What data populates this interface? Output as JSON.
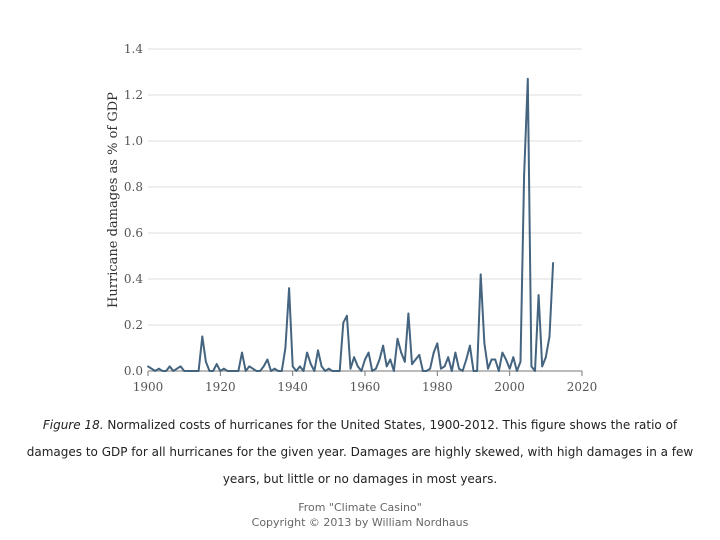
{
  "chart_data": {
    "type": "line",
    "ylabel": "Hurricane damages as % of GDP",
    "xlim": [
      1900,
      2020
    ],
    "ylim": [
      0,
      1.4
    ],
    "xticks": [
      1900,
      1920,
      1940,
      1960,
      1980,
      2000,
      2020
    ],
    "yticks": [
      0.0,
      0.2,
      0.4,
      0.6,
      0.8,
      1.0,
      1.2,
      1.4
    ],
    "ytick_labels": [
      "0.0",
      "0.2",
      "0.4",
      "0.6",
      "0.8",
      "1.0",
      "1.2",
      "1.4"
    ],
    "grid": "horizontal",
    "color": "#44647f",
    "x": [
      1900,
      1901,
      1902,
      1903,
      1904,
      1905,
      1906,
      1907,
      1908,
      1909,
      1910,
      1911,
      1912,
      1913,
      1914,
      1915,
      1916,
      1917,
      1918,
      1919,
      1920,
      1921,
      1922,
      1923,
      1924,
      1925,
      1926,
      1927,
      1928,
      1929,
      1930,
      1931,
      1932,
      1933,
      1934,
      1935,
      1936,
      1937,
      1938,
      1939,
      1940,
      1941,
      1942,
      1943,
      1944,
      1945,
      1946,
      1947,
      1948,
      1949,
      1950,
      1951,
      1952,
      1953,
      1954,
      1955,
      1956,
      1957,
      1958,
      1959,
      1960,
      1961,
      1962,
      1963,
      1964,
      1965,
      1966,
      1967,
      1968,
      1969,
      1970,
      1971,
      1972,
      1973,
      1974,
      1975,
      1976,
      1977,
      1978,
      1979,
      1980,
      1981,
      1982,
      1983,
      1984,
      1985,
      1986,
      1987,
      1988,
      1989,
      1990,
      1991,
      1992,
      1993,
      1994,
      1995,
      1996,
      1997,
      1998,
      1999,
      2000,
      2001,
      2002,
      2003,
      2004,
      2005,
      2006,
      2007,
      2008,
      2009,
      2010,
      2011,
      2012
    ],
    "values": [
      0.02,
      0.01,
      0.0,
      0.01,
      0.0,
      0.0,
      0.02,
      0.0,
      0.01,
      0.02,
      0.0,
      0.0,
      0.0,
      0.0,
      0.0,
      0.15,
      0.04,
      0.0,
      0.0,
      0.03,
      0.0,
      0.01,
      0.0,
      0.0,
      0.0,
      0.0,
      0.08,
      0.0,
      0.02,
      0.01,
      0.0,
      0.0,
      0.02,
      0.05,
      0.0,
      0.01,
      0.0,
      0.0,
      0.1,
      0.36,
      0.02,
      0.0,
      0.02,
      0.0,
      0.08,
      0.03,
      0.0,
      0.09,
      0.02,
      0.0,
      0.01,
      0.0,
      0.0,
      0.0,
      0.21,
      0.24,
      0.01,
      0.06,
      0.02,
      0.0,
      0.05,
      0.08,
      0.0,
      0.01,
      0.05,
      0.11,
      0.02,
      0.05,
      0.0,
      0.14,
      0.08,
      0.04,
      0.25,
      0.03,
      0.05,
      0.07,
      0.0,
      0.0,
      0.01,
      0.08,
      0.12,
      0.01,
      0.02,
      0.06,
      0.0,
      0.08,
      0.01,
      0.0,
      0.05,
      0.11,
      0.0,
      0.0,
      0.42,
      0.12,
      0.01,
      0.05,
      0.05,
      0.0,
      0.08,
      0.05,
      0.01,
      0.06,
      0.0,
      0.04,
      0.85,
      1.27,
      0.02,
      0.0,
      0.33,
      0.02,
      0.06,
      0.15,
      0.47
    ]
  },
  "caption": {
    "figure_label": "Figure 18.",
    "text": " Normalized costs of hurricanes for the United States, 1900-2012. This figure shows the ratio of damages to GDP for all hurricanes for the given year. Damages are highly skewed, with high damages in a few years, but little or no damages in most years."
  },
  "credit": {
    "line1": "From \"Climate Casino\"",
    "line2": "Copyright © 2013 by William Nordhaus"
  }
}
